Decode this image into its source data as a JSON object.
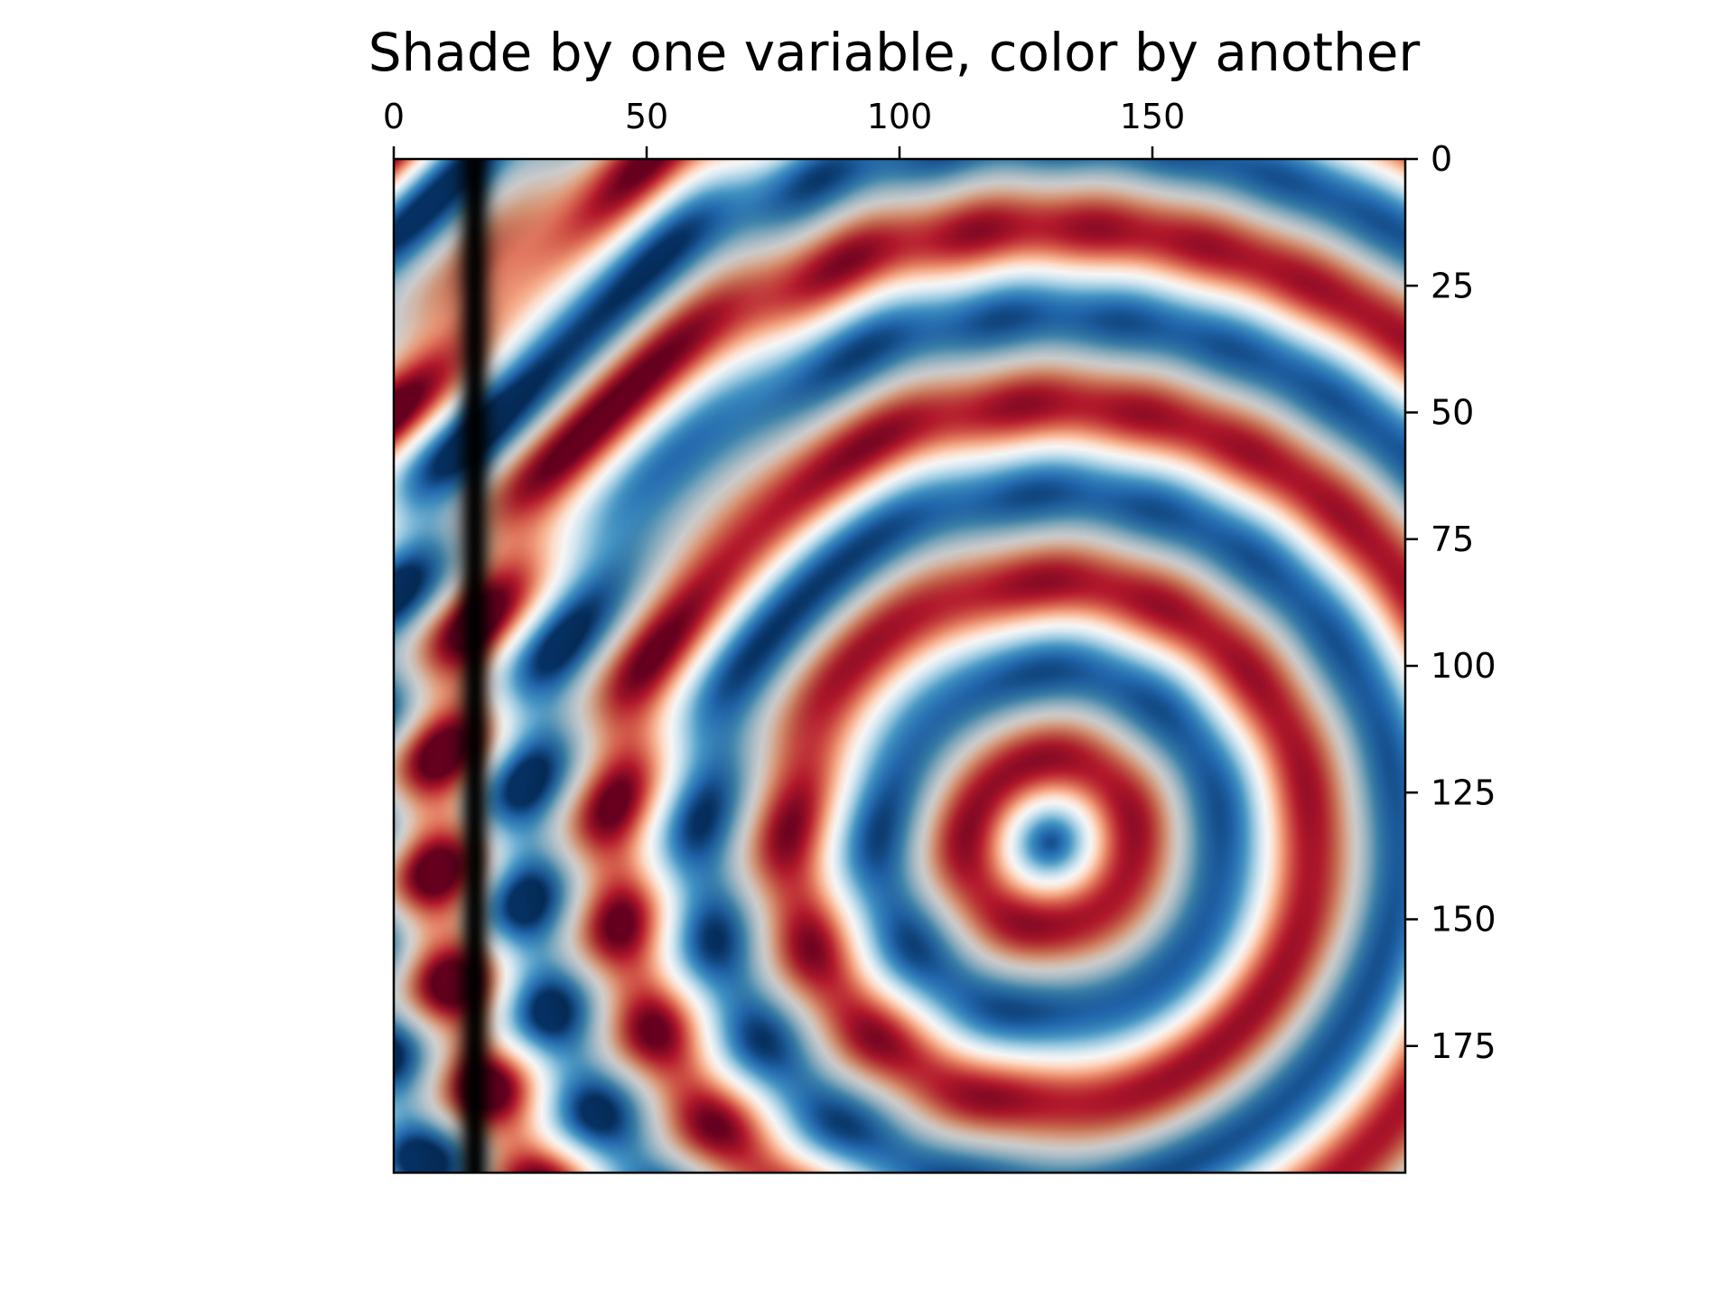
{
  "chart_data": {
    "type": "heatmap",
    "title": "Shade by one variable, color by another",
    "xlabel": "",
    "ylabel": "",
    "x_axis": {
      "position": "top",
      "range": [
        0,
        200
      ],
      "ticks": [
        0,
        50,
        100,
        150
      ],
      "tick_labels": [
        "0",
        "50",
        "100",
        "150"
      ]
    },
    "y_axis": {
      "position": "right",
      "range": [
        0,
        200
      ],
      "inverted": true,
      "ticks": [
        0,
        25,
        50,
        75,
        100,
        125,
        150,
        175
      ],
      "tick_labels": [
        "0",
        "25",
        "50",
        "75",
        "100",
        "125",
        "150",
        "175"
      ]
    },
    "grid": false,
    "colormap": "RdBu",
    "colormap_colors": [
      "#67001f",
      "#b2182b",
      "#d6604d",
      "#f4a582",
      "#fddbc7",
      "#f7f7f7",
      "#d1e5f0",
      "#92c5de",
      "#4393c3",
      "#2166ac",
      "#053061"
    ],
    "shading": "hillshade",
    "field": {
      "description_none": "",
      "ring_center": [
        130,
        135
      ],
      "ring_period": 35,
      "dark_vertical_band_x": 16
    }
  }
}
